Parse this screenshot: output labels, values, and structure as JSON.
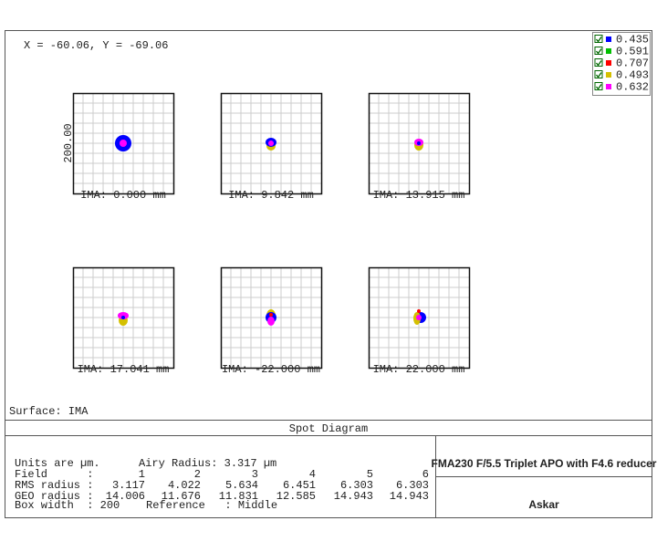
{
  "header": {
    "coordinates": "X = -60.06, Y = -69.06"
  },
  "legend": [
    {
      "label": "0.435",
      "color": "#0000ff"
    },
    {
      "label": "0.591",
      "color": "#00c000"
    },
    {
      "label": "0.707",
      "color": "#ff0000"
    },
    {
      "label": "0.493",
      "color": "#d4c000"
    },
    {
      "label": "0.632",
      "color": "#ff00ff"
    }
  ],
  "scale_label": "200.00",
  "panels": [
    {
      "label": "IMA: 0.000 mm"
    },
    {
      "label": "IMA: 9.842 mm"
    },
    {
      "label": "IMA: 13.915 mm"
    },
    {
      "label": "IMA: 17.041 mm"
    },
    {
      "label": "IMA: -22.000 mm"
    },
    {
      "label": "IMA: 22.000 mm"
    }
  ],
  "surface": "Surface: IMA",
  "title": "Spot Diagram",
  "info": {
    "units": "Units are µm.",
    "airy": "Airy Radius: 3.317 µm",
    "rows": [
      {
        "label": "Field      :",
        "values": [
          "1",
          "2",
          "3",
          "4",
          "5",
          "6"
        ]
      },
      {
        "label": "RMS radius :",
        "values": [
          "3.117",
          "4.022",
          "5.634",
          "6.451",
          "6.303",
          "6.303"
        ]
      },
      {
        "label": "GEO radius :",
        "values": [
          "14.006",
          "11.676",
          "11.831",
          "12.585",
          "14.943",
          "14.943"
        ]
      }
    ],
    "box_width": "Box width  : 200",
    "reference": "Reference   : Middle"
  },
  "product": "FMA230 F/5.5 Triplet APO with F4.6 reducer",
  "brand": "Askar"
}
